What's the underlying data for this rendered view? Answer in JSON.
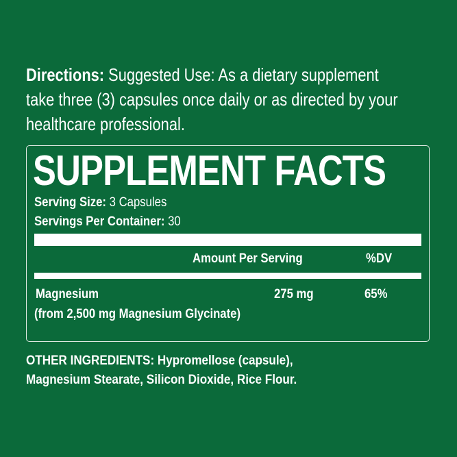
{
  "directions": {
    "label": "Directions:",
    "line1": "Suggested Use: As a dietary supplement",
    "line2": "take three (3) capsules once daily or as directed by your",
    "line3": "healthcare professional."
  },
  "facts": {
    "title": "SUPPLEMENT FACTS",
    "serving_size_label": "Serving Size:",
    "serving_size_value": "3 Capsules",
    "servings_label": "Servings Per Container:",
    "servings_value": "30",
    "header_amount": "Amount Per Serving",
    "header_dv": "%DV",
    "rows": [
      {
        "name": "Magnesium",
        "source": "(from 2,500 mg Magnesium Glycinate)",
        "amount": "275 mg",
        "dv": "65%"
      }
    ]
  },
  "other_ingredients": {
    "label": "OTHER INGREDIENTS:",
    "line1": "Hypromellose (capsule),",
    "line2": "Magnesium Stearate, Silicon Dioxide, Rice Flour."
  },
  "colors": {
    "background": "#0b6a3a",
    "text": "#ffffff"
  }
}
